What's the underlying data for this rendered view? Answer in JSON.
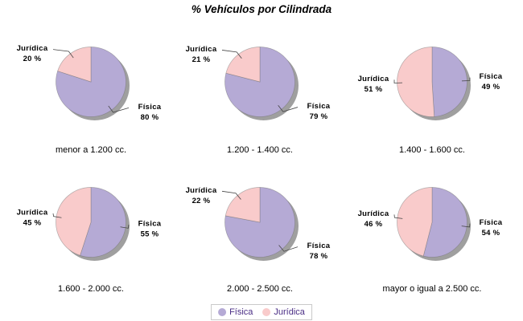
{
  "chart_data": {
    "type": "pie",
    "title": "% Vehículos por Cilindrada",
    "series": [
      {
        "name": "Física",
        "color": "#b5aad5"
      },
      {
        "name": "Jurídica",
        "color": "#f9cbcb"
      }
    ],
    "pies": [
      {
        "category": "menor a 1.200 cc.",
        "values": [
          80,
          20
        ]
      },
      {
        "category": "1.200 - 1.400 cc.",
        "values": [
          79,
          21
        ]
      },
      {
        "category": "1.400 - 1.600 cc.",
        "values": [
          49,
          51
        ]
      },
      {
        "category": "1.600 - 2.000 cc.",
        "values": [
          55,
          45
        ]
      },
      {
        "category": "2.000 - 2.500 cc.",
        "values": [
          78,
          22
        ]
      },
      {
        "category": "mayor o igual a 2.500 cc.",
        "values": [
          54,
          46
        ]
      }
    ],
    "value_suffix": " %",
    "layout_hint": {
      "rows": 2,
      "cols": 3,
      "start_angle": "top",
      "direction": "clockwise"
    },
    "legend_position": "bottom-center",
    "shadow_color": "#9f9f9f",
    "leader_line_color": "#444444",
    "label_color": "#000000",
    "legend_text_color": "#4a2d85",
    "legend_border_color": "#c9c9c9"
  }
}
